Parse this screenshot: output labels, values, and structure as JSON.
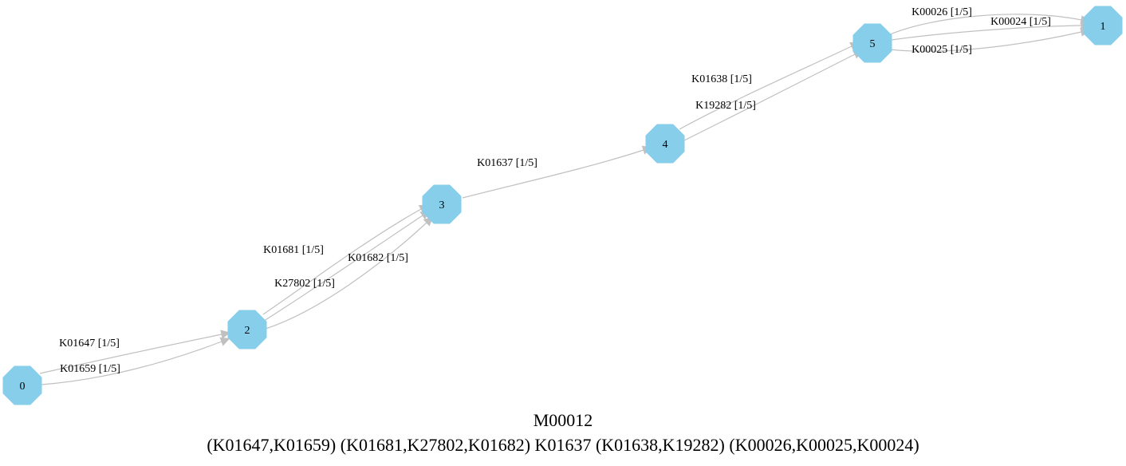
{
  "nodes": [
    {
      "id": "0",
      "label": "0"
    },
    {
      "id": "1",
      "label": "1"
    },
    {
      "id": "2",
      "label": "2"
    },
    {
      "id": "3",
      "label": "3"
    },
    {
      "id": "4",
      "label": "4"
    },
    {
      "id": "5",
      "label": "5"
    }
  ],
  "edges": [
    {
      "from": "0",
      "to": "2",
      "label": "K01647 [1/5]"
    },
    {
      "from": "0",
      "to": "2",
      "label": "K01659 [1/5]"
    },
    {
      "from": "2",
      "to": "3",
      "label": "K01681 [1/5]"
    },
    {
      "from": "2",
      "to": "3",
      "label": "K27802 [1/5]"
    },
    {
      "from": "2",
      "to": "3",
      "label": "K01682 [1/5]"
    },
    {
      "from": "3",
      "to": "4",
      "label": "K01637 [1/5]"
    },
    {
      "from": "4",
      "to": "5",
      "label": "K01638 [1/5]"
    },
    {
      "from": "4",
      "to": "5",
      "label": "K19282 [1/5]"
    },
    {
      "from": "5",
      "to": "1",
      "label": "K00026 [1/5]"
    },
    {
      "from": "5",
      "to": "1",
      "label": "K00024 [1/5]"
    },
    {
      "from": "5",
      "to": "1",
      "label": "K00025 [1/5]"
    }
  ],
  "caption": {
    "title": "M00012",
    "formula": "(K01647,K01659) (K01681,K27802,K01682) K01637 (K01638,K19282) (K00026,K00025,K00024)"
  },
  "colors": {
    "node_fill": "#87ceeb",
    "edge": "#c0c0c0"
  }
}
